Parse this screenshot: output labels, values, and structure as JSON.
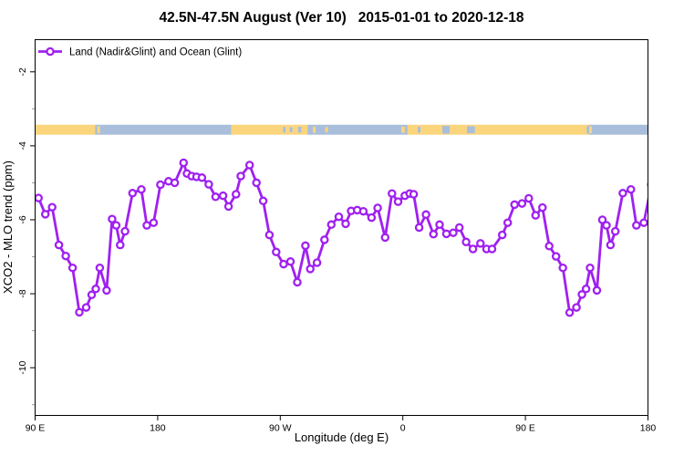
{
  "chart_data": {
    "type": "line",
    "title": "42.5N-47.5N August (Ver 10)   2015-01-01 to 2020-12-18",
    "xlabel": "Longitude (deg E)",
    "ylabel": "XCO2 - MLO trend (ppm)",
    "xlim": [
      90,
      540
    ],
    "ylim": [
      -11.29,
      -1.13
    ],
    "grid": false,
    "legend_position": "top-left",
    "x_ticks": [
      {
        "lon": 90,
        "label": "90 E"
      },
      {
        "lon": 180,
        "label": "180"
      },
      {
        "lon": 270,
        "label": "90 W"
      },
      {
        "lon": 360,
        "label": "0"
      },
      {
        "lon": 450,
        "label": "90 E"
      },
      {
        "lon": 540,
        "label": "180"
      }
    ],
    "y_ticks": [
      {
        "value": -2,
        "label": "-2"
      },
      {
        "value": -4,
        "label": "-4"
      },
      {
        "value": -6,
        "label": "-6"
      },
      {
        "value": -8,
        "label": "-8"
      },
      {
        "value": -10,
        "label": "-10"
      }
    ],
    "y_minor_ticks": [
      -3,
      -5,
      -7,
      -9,
      -11
    ],
    "series": [
      {
        "name": "Land (Nadir&Glint) and Ocean (Glint)",
        "color": "#A020F0",
        "marker": "open-circle",
        "points": [
          [
            92.5,
            -5.41
          ],
          [
            97.5,
            -5.85
          ],
          [
            102.5,
            -5.66
          ],
          [
            107.5,
            -6.68
          ],
          [
            112.5,
            -6.98
          ],
          [
            117.5,
            -7.3
          ],
          [
            122.5,
            -8.5
          ],
          [
            127.5,
            -8.37
          ],
          [
            131.5,
            -8.03
          ],
          [
            134.5,
            -7.87
          ],
          [
            137.5,
            -7.3
          ],
          [
            142.5,
            -7.91
          ],
          [
            146.5,
            -5.98
          ],
          [
            149.5,
            -6.15
          ],
          [
            152.5,
            -6.68
          ],
          [
            156,
            -6.31
          ],
          [
            161.5,
            -5.28
          ],
          [
            168,
            -5.18
          ],
          [
            172,
            -6.15
          ],
          [
            177,
            -6.08
          ],
          [
            182,
            -5.05
          ],
          [
            188,
            -4.96
          ],
          [
            192.5,
            -5.0
          ],
          [
            199,
            -4.46
          ],
          [
            201.5,
            -4.75
          ],
          [
            205,
            -4.82
          ],
          [
            208.5,
            -4.84
          ],
          [
            212.5,
            -4.86
          ],
          [
            217.5,
            -5.04
          ],
          [
            222.5,
            -5.38
          ],
          [
            228,
            -5.35
          ],
          [
            232,
            -5.64
          ],
          [
            237.5,
            -5.31
          ],
          [
            241,
            -4.82
          ],
          [
            247.5,
            -4.52
          ],
          [
            252.5,
            -5.0
          ],
          [
            257.5,
            -5.49
          ],
          [
            262,
            -6.41
          ],
          [
            267,
            -6.87
          ],
          [
            272.5,
            -7.2
          ],
          [
            277.5,
            -7.13
          ],
          [
            282.5,
            -7.69
          ],
          [
            288.5,
            -6.7
          ],
          [
            292,
            -7.33
          ],
          [
            297,
            -7.16
          ],
          [
            302.5,
            -6.54
          ],
          [
            307.5,
            -6.13
          ],
          [
            313,
            -5.92
          ],
          [
            318,
            -6.11
          ],
          [
            322,
            -5.76
          ],
          [
            326.5,
            -5.74
          ],
          [
            331,
            -5.77
          ],
          [
            337,
            -5.94
          ],
          [
            341.5,
            -5.68
          ],
          [
            347,
            -6.48
          ],
          [
            352,
            -5.29
          ],
          [
            356.5,
            -5.51
          ],
          [
            361.5,
            -5.35
          ],
          [
            365,
            -5.29
          ],
          [
            368,
            -5.31
          ],
          [
            372,
            -6.21
          ],
          [
            377,
            -5.86
          ],
          [
            382.5,
            -6.39
          ],
          [
            387,
            -6.13
          ],
          [
            392,
            -6.38
          ],
          [
            397,
            -6.35
          ],
          [
            401.5,
            -6.21
          ],
          [
            406.5,
            -6.6
          ],
          [
            411.5,
            -6.79
          ],
          [
            417,
            -6.64
          ],
          [
            421.5,
            -6.79
          ],
          [
            425.5,
            -6.79
          ],
          [
            433,
            -6.41
          ],
          [
            437,
            -6.08
          ],
          [
            442,
            -5.59
          ],
          [
            447.5,
            -5.56
          ],
          [
            452.5,
            -5.42
          ],
          [
            457.5,
            -5.88
          ],
          [
            462.5,
            -5.67
          ],
          [
            467.5,
            -6.71
          ],
          [
            472.5,
            -6.99
          ],
          [
            477.5,
            -7.3
          ],
          [
            482.5,
            -8.51
          ],
          [
            487.5,
            -8.37
          ],
          [
            491.5,
            -8.02
          ],
          [
            494.5,
            -7.87
          ],
          [
            497.5,
            -7.3
          ],
          [
            502.5,
            -7.91
          ],
          [
            506.5,
            -6.0
          ],
          [
            509.5,
            -6.15
          ],
          [
            512.5,
            -6.68
          ],
          [
            516,
            -6.31
          ],
          [
            521.5,
            -5.28
          ],
          [
            527.5,
            -5.18
          ],
          [
            531.5,
            -6.15
          ],
          [
            537,
            -6.08
          ],
          [
            542.5,
            -5.05
          ]
        ]
      }
    ],
    "map_strip": {
      "y_ppm": [
        -3.43,
        -3.7
      ],
      "land_label": "land",
      "ocean_label": "ocean",
      "segments": [
        [
          90,
          134,
          "L",
          1
        ],
        [
          134,
          135.8,
          "O",
          1
        ],
        [
          135.8,
          137.6,
          "L",
          0.7
        ],
        [
          137.6,
          234,
          "O",
          1
        ],
        [
          234,
          272,
          "L",
          1
        ],
        [
          272,
          274,
          "O",
          0.6
        ],
        [
          274,
          277,
          "L",
          1
        ],
        [
          277,
          279,
          "O",
          0.5
        ],
        [
          279,
          283,
          "L",
          1
        ],
        [
          283,
          285.5,
          "O",
          0.6
        ],
        [
          285.5,
          290,
          "L",
          1
        ],
        [
          290,
          294,
          "O",
          1
        ],
        [
          294,
          296,
          "L",
          0.6
        ],
        [
          296,
          303,
          "O",
          1
        ],
        [
          303,
          305,
          "L",
          0.5
        ],
        [
          305,
          359,
          "O",
          1
        ],
        [
          359,
          361.5,
          "L",
          0.6
        ],
        [
          361.5,
          363.5,
          "O",
          1
        ],
        [
          363.5,
          371,
          "L",
          1
        ],
        [
          371,
          373,
          "O",
          0.6
        ],
        [
          373,
          389,
          "L",
          1
        ],
        [
          389,
          394.5,
          "O",
          0.8
        ],
        [
          394.5,
          407,
          "L",
          1
        ],
        [
          407,
          413,
          "O",
          0.7
        ],
        [
          413,
          495,
          "L",
          1
        ],
        [
          495,
          496.8,
          "O",
          0.8
        ],
        [
          496.8,
          498.8,
          "L",
          0.7
        ],
        [
          498.8,
          540,
          "O",
          1
        ]
      ]
    }
  },
  "colors": {
    "series": "#A020F0",
    "land": "#FBD57C",
    "ocean": "#A8BEDB",
    "axis": "#000000",
    "minor_tick": "#999999",
    "background": "#FFFFFF"
  }
}
